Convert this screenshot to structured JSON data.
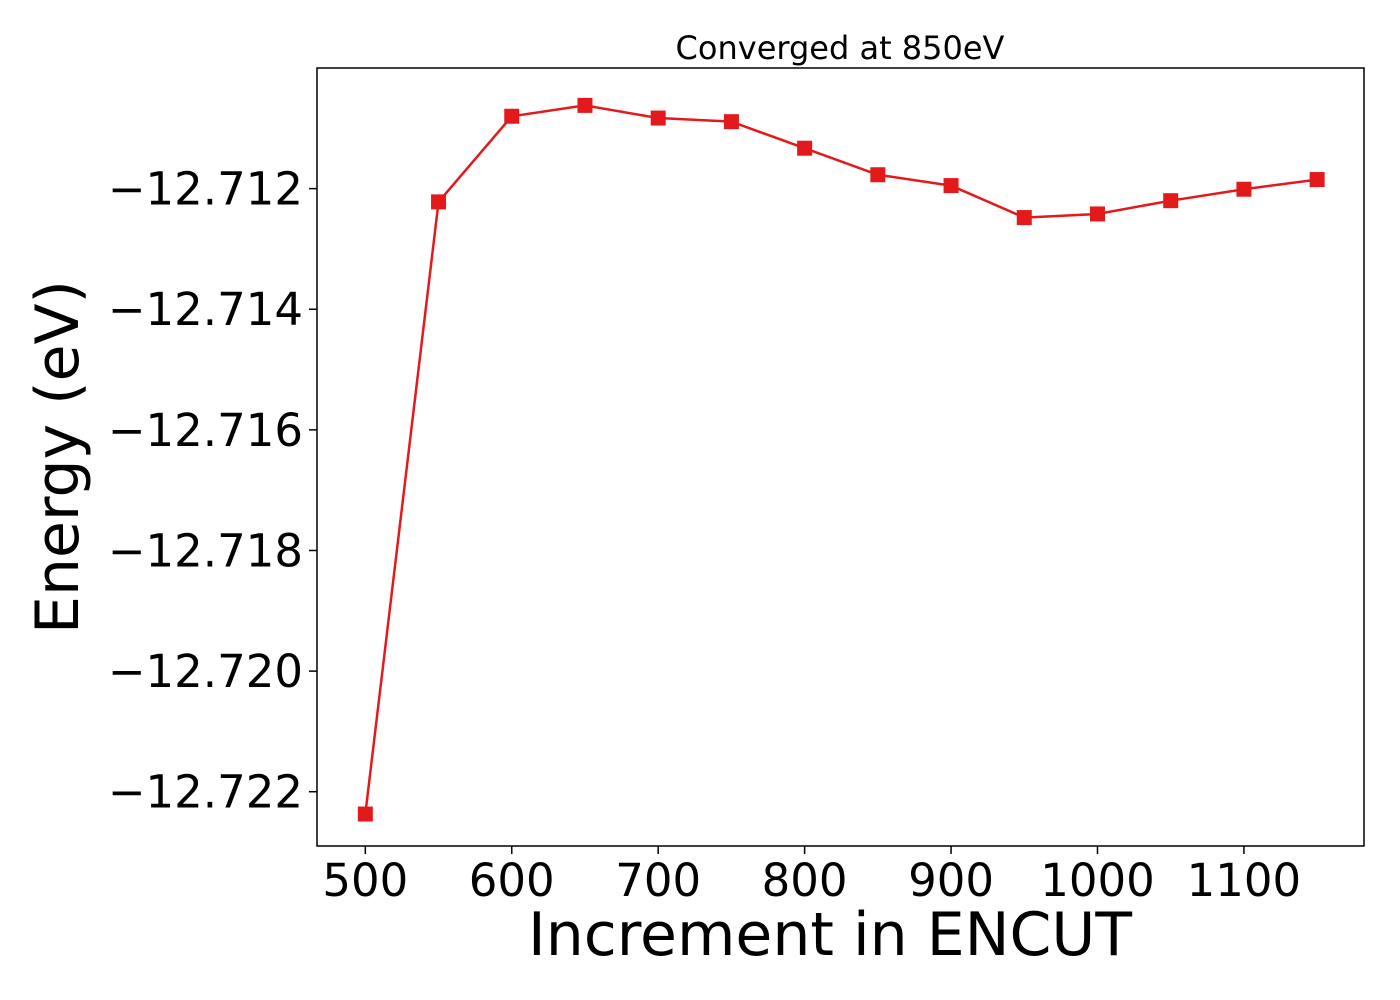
{
  "chart_data": {
    "type": "line",
    "title": "Converged at 850eV",
    "xlabel": "Increment in ENCUT",
    "ylabel": "Energy (eV)",
    "x": [
      500,
      550,
      600,
      650,
      700,
      750,
      800,
      850,
      900,
      950,
      1000,
      1050,
      1100,
      1150
    ],
    "series": [
      {
        "name": "",
        "color": "#e31a1c",
        "marker": "square",
        "values": [
          -12.72237,
          -12.71222,
          -12.7108,
          -12.71062,
          -12.71083,
          -12.71089,
          -12.71133,
          -12.71177,
          -12.71195,
          -12.71248,
          -12.71242,
          -12.7122,
          -12.71201,
          -12.71185
        ]
      }
    ],
    "xlim": [
      467,
      1182
    ],
    "ylim": [
      -12.7229,
      -12.71
    ],
    "xticks": [
      500,
      600,
      700,
      800,
      900,
      1000,
      1100
    ],
    "xtick_labels": [
      "500",
      "600",
      "700",
      "800",
      "900",
      "1000",
      "1100"
    ],
    "yticks": [
      -12.722,
      -12.72,
      -12.718,
      -12.716,
      -12.714,
      -12.712
    ],
    "ytick_labels": [
      "−12.722",
      "−12.720",
      "−12.718",
      "−12.716",
      "−12.714",
      "−12.712"
    ],
    "grid": false,
    "legend": "none"
  }
}
